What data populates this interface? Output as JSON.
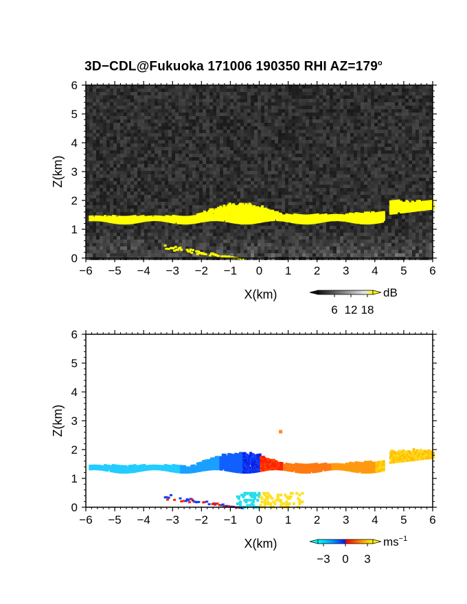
{
  "title": {
    "main": "3D−CDL@Fukuoka 171006 190350 RHI AZ=179",
    "degree": "o"
  },
  "chart_data": [
    {
      "type": "heatmap",
      "title": "3D−CDL@Fukuoka 171006 190350 RHI AZ=179°",
      "xlabel": "X(km)",
      "ylabel": "Z(km)",
      "xlim": [
        -6,
        6
      ],
      "ylim": [
        0,
        6
      ],
      "xticks": [
        "−6",
        "−5",
        "−4",
        "−3",
        "−2",
        "−1",
        "0",
        "1",
        "2",
        "3",
        "4",
        "5",
        "6"
      ],
      "yticks": [
        "0",
        "1",
        "2",
        "3",
        "4",
        "5",
        "6"
      ],
      "background": "grayscale noise",
      "colorbar": {
        "unit": "dB",
        "ticks": [
          "6",
          "12",
          "18"
        ],
        "colors": [
          "#111111",
          "#bbbbbb",
          "#ffff00"
        ]
      },
      "features": [
        {
          "kind": "layer",
          "color": "#ffff00",
          "x": [
            -5.9,
            6.0
          ],
          "z": [
            1.3,
            2.05
          ]
        },
        {
          "kind": "bump",
          "color": "#ffff00",
          "x": [
            -2.2,
            0.8
          ],
          "z": [
            1.3,
            2.0
          ]
        },
        {
          "kind": "near-ground streak",
          "color": "#ffff00",
          "x": [
            -3.3,
            -0.6
          ],
          "z": [
            0.0,
            0.5
          ]
        }
      ]
    },
    {
      "type": "heatmap",
      "xlabel": "X(km)",
      "ylabel": "Z(km)",
      "xlim": [
        -6,
        6
      ],
      "ylim": [
        0,
        6
      ],
      "xticks": [
        "−6",
        "−5",
        "−4",
        "−3",
        "−2",
        "−1",
        "0",
        "1",
        "2",
        "3",
        "4",
        "5",
        "6"
      ],
      "yticks": [
        "0",
        "1",
        "2",
        "3",
        "4",
        "5",
        "6"
      ],
      "colorbar": {
        "unit": "ms",
        "exponent": "−1",
        "ticks": [
          "−3",
          "0",
          "3"
        ],
        "colors": [
          "#00ffff",
          "#0020ff",
          "#ff0000",
          "#ffff00"
        ]
      },
      "features": [
        {
          "kind": "layer",
          "velocity_sign": "negative",
          "x": [
            -5.9,
            0.0
          ],
          "z": [
            1.3,
            1.9
          ]
        },
        {
          "kind": "layer",
          "velocity_sign": "positive",
          "x": [
            0.0,
            6.0
          ],
          "z": [
            1.3,
            2.1
          ]
        },
        {
          "kind": "isolated point",
          "x": 0.7,
          "z": 2.65
        },
        {
          "kind": "near-ground streak",
          "x": [
            -3.3,
            1.5
          ],
          "z": [
            0.0,
            0.6
          ]
        }
      ]
    }
  ]
}
